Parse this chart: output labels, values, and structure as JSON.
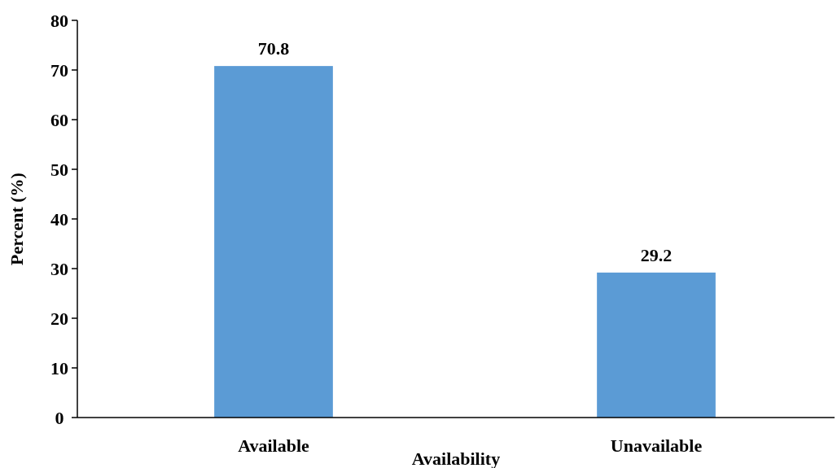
{
  "chart_data": {
    "type": "bar",
    "xlabel": "Availability",
    "ylabel": "Percent (%)",
    "categories": [
      "Available",
      "Unavailable"
    ],
    "values": [
      70.8,
      29.2
    ],
    "color": "#5b9bd5",
    "ylim": [
      0,
      80
    ],
    "yticks": [
      0,
      10,
      20,
      30,
      40,
      50,
      60,
      70,
      80
    ],
    "data_labels": true,
    "grid": false
  }
}
